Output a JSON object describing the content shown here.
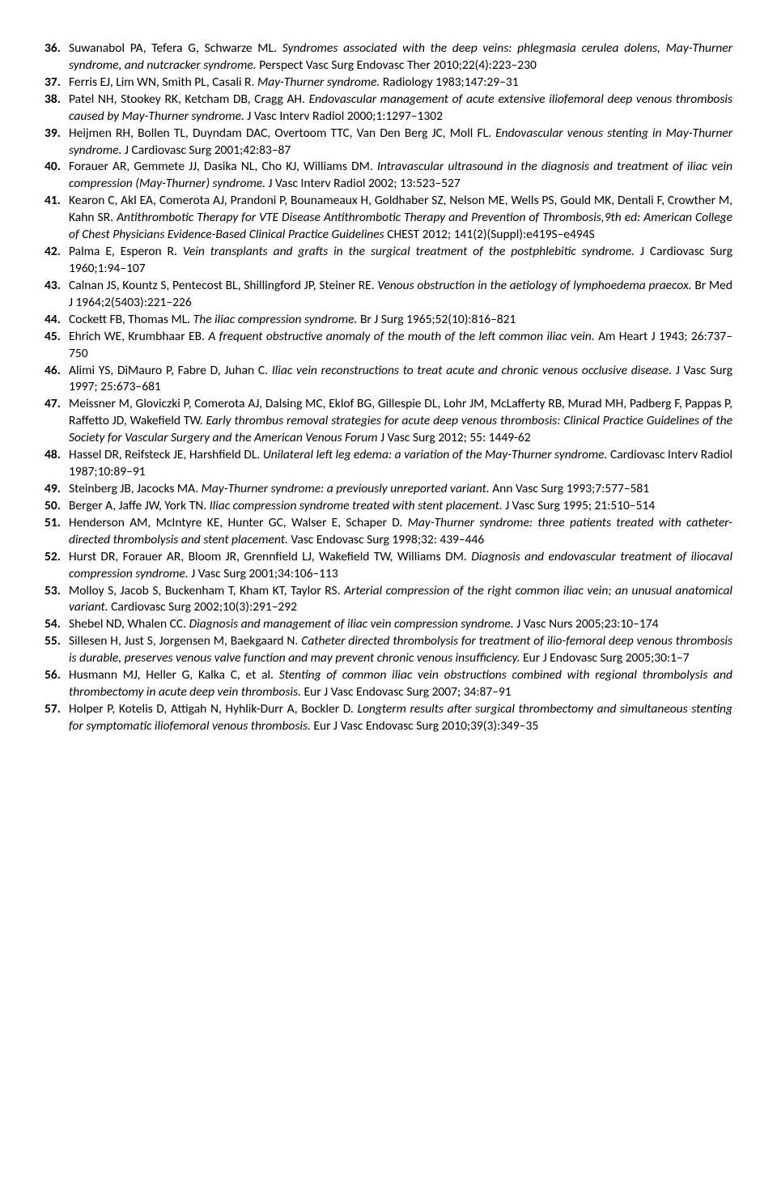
{
  "references": [
    {
      "authors": "Suwanabol PA, Tefera G, Schwarze ML.",
      "title": "Syndromes associated with the deep veins: phlegmasia cerulea dolens, May-Thurner syndrome, and nutcracker syndrome.",
      "journal": "Perspect Vasc Surg Endovasc Ther 2010;22(4):223–230"
    },
    {
      "authors": "Ferris EJ, Lim WN, Smith PL, Casali R.",
      "title": "May-Thurner syndrome.",
      "journal": "Radiology 1983;147:29–31"
    },
    {
      "authors": "Patel NH, Stookey RK, Ketcham DB, Cragg AH.",
      "title": "Endovascular management of acute extensive iliofemoral deep venous thrombosis caused by May-Thurner syndrome.",
      "journal": "J Vasc Interv Radiol 2000;1:1297–1302"
    },
    {
      "authors": "Heijmen RH, Bollen TL, Duyndam DAC, Overtoom TTC, Van Den Berg JC, Moll FL.",
      "title": "Endovascular venous stenting in May-Thurner syndrome.",
      "journal": "J Cardiovasc Surg 2001;42:83–87"
    },
    {
      "authors": "Forauer AR, Gemmete JJ, Dasika NL, Cho KJ, Williams DM.",
      "title": "Intravascular ultrasound in the diagnosis and treatment of iliac vein compression (May-Thurner) syndrome.",
      "journal": "J Vasc Interv Radiol 2002; 13:523–527"
    },
    {
      "authors": "Kearon C, Akl EA, Comerota AJ, Prandoni P, Bounameaux  H, Goldhaber SZ, Nelson ME, Wells  PS, Gould MK, Dentali F, Crowther M, Kahn SR.",
      "title": "Antithrombotic Therapy for VTE Disease Antithrombotic Therapy and Prevention of Thrombosis,9th ed: American College of Chest Physicians Evidence-Based Clinical Practice Guidelines",
      "journal": "CHEST 2012; 141(2)(Suppl):e419S–e494S"
    },
    {
      "authors": "Palma E, Esperon R.",
      "title": "Vein transplants and grafts in the surgical treatment of the postphlebitic syndrome.",
      "journal": "J Cardiovasc Surg 1960;1:94–107"
    },
    {
      "authors": "Calnan JS, Kountz S, Pentecost BL, Shillingford JP, Steiner RE.",
      "title": "Venous obstruction in the aetiology of lymphoedema praecox.",
      "journal": "Br Med J 1964;2(5403):221–226"
    },
    {
      "authors": "Cockett FB, Thomas ML.",
      "title": "The iliac compression syndrome.",
      "journal": "Br J Surg 1965;52(10):816–821"
    },
    {
      "authors": "Ehrich WE, Krumbhaar EB.",
      "title": "A frequent obstructive anomaly of the mouth of the left common iliac vein.",
      "journal": "Am Heart J 1943; 26:737–750"
    },
    {
      "authors": "Alimi YS, DiMauro P, Fabre D, Juhan C.",
      "title": "Iliac vein reconstructions to treat acute and chronic venous occlusive disease.",
      "journal": "J Vasc Surg 1997; 25:673–681"
    },
    {
      "authors": "Meissner M, Gloviczki P, Comerota AJ,  Dalsing MC, Eklof BG, Gillespie DL, Lohr JM, McLafferty RB, Murad MH, Padberg F, Pappas P, Raffetto JD, Wakefield TW.",
      "title": "Early thrombus removal strategies for acute deep venous thrombosis: Clinical Practice Guidelines of the Society for Vascular Surgery and the American Venous Forum",
      "journal": "J Vasc Surg 2012; 55: 1449-62"
    },
    {
      "authors": "Hassel DR, Reifsteck JE, Harshfield DL.",
      "title": "Unilateral left leg edema: a variation of the May-Thurner syndrome.",
      "journal": "Cardiovasc Interv Radiol 1987;10:89–91"
    },
    {
      "authors": "Steinberg JB, Jacocks MA.",
      "title": "May-Thurner syndrome: a previously unreported variant.",
      "journal": "Ann Vasc Surg 1993;7:577–581"
    },
    {
      "authors": "Berger A, Jaffe JW, York TN.",
      "title": "Iliac compression syndrome treated with stent placement.",
      "journal": "J Vasc Surg 1995; 21:510–514"
    },
    {
      "authors": "Henderson AM, McIntyre KE, Hunter GC, Walser E, Schaper D.",
      "title": "May-Thurner syndrome: three patients treated with catheter- directed thrombolysis and stent placement.",
      "journal": "Vasc Endovasc Surg 1998;32: 439–446"
    },
    {
      "authors": "Hurst DR, Forauer AR, Bloom JR, Grennfield LJ, Wakefield TW, Williams DM.",
      "title": "Diagnosis and endovascular treatment of iliocaval compression syndrome.",
      "journal": "J Vasc Surg 2001;34:106–113"
    },
    {
      "authors": "Molloy S, Jacob S, Buckenham T, Kham KT, Taylor RS.",
      "title": "Arterial compression of the right common iliac vein; an unusual anatomical variant.",
      "journal": "Cardiovasc Surg 2002;10(3):291–292"
    },
    {
      "authors": "Shebel ND, Whalen CC.",
      "title": "Diagnosis and management of iliac vein compression syndrome.",
      "journal": "J Vasc Nurs 2005;23:10–174"
    },
    {
      "authors": "Sillesen H, Just S, Jorgensen M, Baekgaard N.",
      "title": "Catheter directed thrombolysis for treatment of ilio-femoral deep venous thrombosis is durable, preserves venous valve function and may prevent chronic venous insufficiency.",
      "journal": "Eur J Endovasc Surg 2005;30:1–7"
    },
    {
      "authors": "Husmann MJ, Heller G, Kalka C, et al.",
      "title": "Stenting of common iliac vein obstructions combined with regional thrombolysis and thrombectomy in acute deep vein thrombosis.",
      "journal": "Eur J Vasc Endovasc Surg 2007; 34:87–91"
    },
    {
      "authors": "Holper P, Kotelis D, Attigah N, Hyhlik-Durr A, Bockler D.",
      "title": "Longterm results after surgical thrombectomy and simultaneous stenting for symptomatic iliofemoral venous thrombosis.",
      "journal": "Eur J Vasc Endovasc Surg 2010;39(3):349–35"
    }
  ]
}
